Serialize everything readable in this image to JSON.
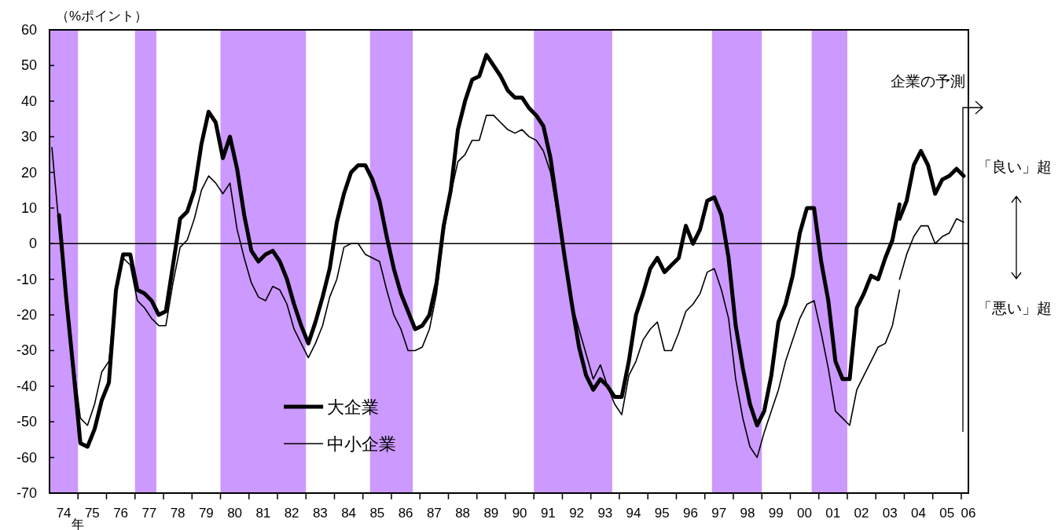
{
  "chart_data": {
    "type": "line",
    "ylabel": "（%ポイント）",
    "xlabel": "年",
    "series": [
      {
        "name": "大企業",
        "color": "#000000",
        "x": [
          "1974-05",
          "1974-08",
          "1974-11",
          "1975-02",
          "1975-05",
          "1975-08",
          "1975-11",
          "1976-02",
          "1976-05",
          "1976-08",
          "1976-11",
          "1977-02",
          "1977-05",
          "1977-08",
          "1977-11",
          "1978-02",
          "1978-05",
          "1978-08",
          "1978-11",
          "1979-02",
          "1979-05",
          "1979-08",
          "1979-11",
          "1980-02",
          "1980-05",
          "1980-08",
          "1980-11",
          "1981-02",
          "1981-05",
          "1981-08",
          "1981-11",
          "1982-02",
          "1982-05",
          "1982-08",
          "1982-11",
          "1983-02",
          "1983-05",
          "1983-08",
          "1983-11",
          "1984-02",
          "1984-05",
          "1984-08",
          "1984-11",
          "1985-02",
          "1985-05",
          "1985-08",
          "1985-11",
          "1986-02",
          "1986-05",
          "1986-08",
          "1986-11",
          "1987-02",
          "1987-05",
          "1987-08",
          "1987-11",
          "1988-02",
          "1988-05",
          "1988-08",
          "1988-11",
          "1989-02",
          "1989-05",
          "1989-08",
          "1989-11",
          "1990-02",
          "1990-05",
          "1990-08",
          "1990-11",
          "1991-02",
          "1991-05",
          "1991-08",
          "1991-11",
          "1992-02",
          "1992-05",
          "1992-08",
          "1992-11",
          "1993-02",
          "1993-05",
          "1993-08",
          "1993-11",
          "1994-02",
          "1994-05",
          "1994-08",
          "1994-11",
          "1995-02",
          "1995-05",
          "1995-08",
          "1995-11",
          "1996-02",
          "1996-05",
          "1996-08",
          "1996-11",
          "1997-02",
          "1997-05",
          "1997-08",
          "1997-11",
          "1998-02",
          "1998-05",
          "1998-08",
          "1998-11",
          "1999-02",
          "1999-05",
          "1999-08",
          "1999-11",
          "2000-02",
          "2000-05",
          "2000-08",
          "2000-11",
          "2001-02",
          "2001-05",
          "2001-08",
          "2001-11",
          "2002-02",
          "2002-05",
          "2002-08",
          "2002-11",
          "2003-02",
          "2003-05",
          "2003-08",
          "2003-11"
        ],
        "values": [
          8,
          -15,
          -35,
          -56,
          -57,
          -52,
          -44,
          -39,
          -13,
          -3,
          -3,
          -13,
          -14,
          -16,
          -20,
          -19,
          -6,
          7,
          9,
          15,
          28,
          37,
          34,
          24,
          30,
          21,
          8,
          -2,
          -5,
          -3,
          -2,
          -5,
          -10,
          -17,
          -23,
          -28,
          -22,
          -15,
          -7,
          6,
          14,
          20,
          22,
          22,
          18,
          12,
          2,
          -7,
          -14,
          -19,
          -24,
          -23,
          -20,
          -11,
          5,
          15,
          32,
          40,
          46,
          47,
          53,
          50,
          47,
          43,
          41,
          41,
          38,
          36,
          33,
          24,
          10,
          -4,
          -17,
          -29,
          -37,
          -41,
          -38,
          -40,
          -43,
          -43,
          -33,
          -20,
          -14,
          -7,
          -4,
          -8,
          -6,
          -4,
          5,
          0,
          4,
          12,
          13,
          8,
          -4,
          -23,
          -35,
          -45,
          -51,
          -47,
          -37,
          -22,
          -17,
          -9,
          3,
          10,
          10,
          -5,
          -16,
          -33,
          -38,
          -38,
          -18,
          -14,
          -9,
          -10,
          -4,
          1,
          11
        ]
      },
      {
        "name": "中小企業",
        "color": "#000000",
        "x": [
          "1974-02",
          "1974-05",
          "1974-08",
          "1974-11",
          "1975-02",
          "1975-05",
          "1975-08",
          "1975-11",
          "1976-02",
          "1976-05",
          "1976-08",
          "1976-11",
          "1977-02",
          "1977-05",
          "1977-08",
          "1977-11",
          "1978-02",
          "1978-05",
          "1978-08",
          "1978-11",
          "1979-02",
          "1979-05",
          "1979-08",
          "1979-11",
          "1980-02",
          "1980-05",
          "1980-08",
          "1980-11",
          "1981-02",
          "1981-05",
          "1981-08",
          "1981-11",
          "1982-02",
          "1982-05",
          "1982-08",
          "1982-11",
          "1983-02",
          "1983-05",
          "1983-08",
          "1983-11",
          "1984-02",
          "1984-05",
          "1984-08",
          "1984-11",
          "1985-02",
          "1985-05",
          "1985-08",
          "1985-11",
          "1986-02",
          "1986-05",
          "1986-08",
          "1986-11",
          "1987-02",
          "1987-05",
          "1987-08",
          "1987-11",
          "1988-02",
          "1988-05",
          "1988-08",
          "1988-11",
          "1989-02",
          "1989-05",
          "1989-08",
          "1989-11",
          "1990-02",
          "1990-05",
          "1990-08",
          "1990-11",
          "1991-02",
          "1991-05",
          "1991-08",
          "1991-11",
          "1992-02",
          "1992-05",
          "1992-08",
          "1992-11",
          "1993-02",
          "1993-05",
          "1993-08",
          "1993-11",
          "1994-02",
          "1994-05",
          "1994-08",
          "1994-11",
          "1995-02",
          "1995-05",
          "1995-08",
          "1995-11",
          "1996-02",
          "1996-05",
          "1996-08",
          "1996-11",
          "1997-02",
          "1997-05",
          "1997-08",
          "1997-11",
          "1998-02",
          "1998-05",
          "1998-08",
          "1998-11",
          "1999-02",
          "1999-05",
          "1999-08",
          "1999-11",
          "2000-02",
          "2000-05",
          "2000-08",
          "2000-11",
          "2001-02",
          "2001-05",
          "2001-08",
          "2001-11",
          "2002-02",
          "2002-05",
          "2002-08",
          "2002-11",
          "2003-02",
          "2003-05",
          "2003-08",
          "2003-11"
        ],
        "values": [
          27,
          5,
          -15,
          -33,
          -49,
          -51,
          -45,
          -36,
          -33,
          -13,
          -4,
          -6,
          -16,
          -18,
          -21,
          -23,
          -23,
          -11,
          -1,
          1,
          7,
          15,
          19,
          17,
          14,
          17,
          4,
          -4,
          -11,
          -15,
          -16,
          -12,
          -13,
          -17,
          -24,
          -28,
          -32,
          -28,
          -23,
          -15,
          -10,
          -1,
          0,
          0,
          -3,
          -4,
          -5,
          -13,
          -20,
          -24,
          -30,
          -30,
          -29,
          -24,
          -14,
          3,
          14,
          23,
          25,
          29,
          29,
          36,
          36,
          34,
          32,
          31,
          32,
          30,
          29,
          26,
          20,
          8,
          -4,
          -17,
          -24,
          -31,
          -38,
          -34,
          -40,
          -45,
          -48,
          -37,
          -33,
          -27,
          -24,
          -22,
          -30,
          -30,
          -25,
          -19,
          -17,
          -14,
          -8,
          -7,
          -13,
          -21,
          -38,
          -49,
          -57,
          -60,
          -53,
          -47,
          -41,
          -33,
          -27,
          -21,
          -17,
          -16,
          -25,
          -35,
          -47,
          -49,
          -51,
          -41,
          -37,
          -33,
          -29,
          -28,
          -23,
          -13
        ]
      },
      {
        "color": "#000000",
        "x": [
          "2003-11",
          "2004-02",
          "2004-05",
          "2004-08",
          "2004-11",
          "2005-02",
          "2005-05",
          "2005-08",
          "2005-11",
          "2006-02"
        ],
        "values": [
          7,
          12,
          22,
          26,
          22,
          14,
          18,
          19,
          21,
          19
        ]
      },
      {
        "color": "#000000",
        "x": [
          "2003-11",
          "2004-02",
          "2004-05",
          "2004-08",
          "2004-11",
          "2005-02",
          "2005-05",
          "2005-08",
          "2005-11",
          "2006-02"
        ],
        "values": [
          -10,
          -3,
          2,
          5,
          5,
          0,
          2,
          3,
          7,
          6
        ]
      }
    ],
    "xlim": [
      "1974-01",
      "2006-04"
    ],
    "xticks": [
      {
        "value": "1975-01",
        "label": null
      },
      {
        "value": "1976-01",
        "label": null
      },
      {
        "value": "1977-01",
        "label": null
      },
      {
        "value": "1978-01",
        "label": null
      },
      {
        "value": "1979-01",
        "label": null
      },
      {
        "value": "1980-01",
        "label": null
      },
      {
        "value": "1981-01",
        "label": null
      },
      {
        "value": "1982-01",
        "label": null
      },
      {
        "value": "1983-01",
        "label": null
      },
      {
        "value": "1984-01",
        "label": null
      },
      {
        "value": "1985-01",
        "label": null
      },
      {
        "value": "1986-01",
        "label": null
      },
      {
        "value": "1987-01",
        "label": null
      },
      {
        "value": "1988-01",
        "label": null
      },
      {
        "value": "1989-01",
        "label": null
      },
      {
        "value": "1990-01",
        "label": null
      },
      {
        "value": "1991-01",
        "label": null
      },
      {
        "value": "1992-01",
        "label": null
      },
      {
        "value": "1993-01",
        "label": null
      },
      {
        "value": "1994-01",
        "label": null
      },
      {
        "value": "1995-01",
        "label": null
      },
      {
        "value": "1996-01",
        "label": null
      },
      {
        "value": "1997-01",
        "label": null
      },
      {
        "value": "1998-01",
        "label": null
      },
      {
        "value": "1999-01",
        "label": null
      },
      {
        "value": "2000-01",
        "label": null
      },
      {
        "value": "2001-01",
        "label": null
      },
      {
        "value": "2002-01",
        "label": null
      },
      {
        "value": "2003-01",
        "label": null
      },
      {
        "value": "2004-01",
        "label": null
      },
      {
        "value": "2005-01",
        "label": null
      },
      {
        "value": "2006-01",
        "label": null
      },
      {
        "value": "1974-07",
        "label": "74"
      },
      {
        "value": "1975-07",
        "label": "75"
      },
      {
        "value": "1976-07",
        "label": "76"
      },
      {
        "value": "1977-07",
        "label": "77"
      },
      {
        "value": "1978-07",
        "label": "78"
      },
      {
        "value": "1979-07",
        "label": "79"
      },
      {
        "value": "1980-07",
        "label": "80"
      },
      {
        "value": "1981-07",
        "label": "81"
      },
      {
        "value": "1982-07",
        "label": "82"
      },
      {
        "value": "1983-07",
        "label": "83"
      },
      {
        "value": "1984-07",
        "label": "84"
      },
      {
        "value": "1985-07",
        "label": "85"
      },
      {
        "value": "1986-07",
        "label": "86"
      },
      {
        "value": "1987-07",
        "label": "87"
      },
      {
        "value": "1988-07",
        "label": "88"
      },
      {
        "value": "1989-07",
        "label": "89"
      },
      {
        "value": "1990-07",
        "label": "90"
      },
      {
        "value": "1991-07",
        "label": "91"
      },
      {
        "value": "1992-07",
        "label": "92"
      },
      {
        "value": "1993-07",
        "label": "93"
      },
      {
        "value": "1994-07",
        "label": "94"
      },
      {
        "value": "1995-07",
        "label": "95"
      },
      {
        "value": "1996-07",
        "label": "96"
      },
      {
        "value": "1997-07",
        "label": "97"
      },
      {
        "value": "1998-07",
        "label": "98"
      },
      {
        "value": "1999-07",
        "label": "99"
      },
      {
        "value": "2000-07",
        "label": "00"
      },
      {
        "value": "2001-07",
        "label": "01"
      },
      {
        "value": "2002-07",
        "label": "02"
      },
      {
        "value": "2003-07",
        "label": "03"
      },
      {
        "value": "2004-07",
        "label": "04"
      },
      {
        "value": "2005-07",
        "label": "05"
      },
      {
        "value": "2006-04",
        "label": "06"
      }
    ],
    "ylim": [
      -70,
      60
    ],
    "yticks": [
      -70,
      -60,
      -50,
      -40,
      -30,
      -20,
      -10,
      0,
      10,
      20,
      30,
      40,
      50,
      60
    ],
    "bands": [
      {
        "axis": "x",
        "from": "1974-01",
        "to": "1975-01",
        "color": "#cc99ff"
      },
      {
        "axis": "x",
        "from": "1977-01",
        "to": "1977-10",
        "color": "#cc99ff"
      },
      {
        "axis": "x",
        "from": "1980-01",
        "to": "1983-01",
        "color": "#cc99ff"
      },
      {
        "axis": "x",
        "from": "1985-04",
        "to": "1986-10",
        "color": "#cc99ff"
      },
      {
        "axis": "x",
        "from": "1991-01",
        "to": "1993-10",
        "color": "#cc99ff"
      },
      {
        "axis": "x",
        "from": "1997-04",
        "to": "1999-01",
        "color": "#cc99ff"
      },
      {
        "axis": "x",
        "from": "2000-10",
        "to": "2002-01",
        "color": "#cc99ff"
      }
    ],
    "ref_lines": [
      {
        "axis": "y",
        "value": 0,
        "color": "#000000"
      }
    ],
    "annotations": [
      "企業の予測",
      "「良い」超",
      "「悪い」超"
    ],
    "legend": "bottom left",
    "grid": false,
    "marker": "none",
    "line_style": "solid"
  }
}
